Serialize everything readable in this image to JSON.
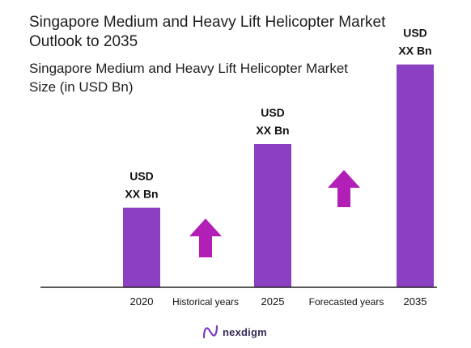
{
  "chart_data": {
    "type": "bar",
    "title": "Singapore Medium and Heavy Lift Helicopter Market Outlook to 2035",
    "subtitle": "Singapore Medium and Heavy Lift Helicopter Market Size (in USD Bn)",
    "categories": [
      "2020",
      "2025",
      "2035"
    ],
    "values": [
      1.0,
      1.8,
      2.8
    ],
    "value_labels": [
      [
        "USD",
        "XX Bn"
      ],
      [
        "USD",
        "XX Bn"
      ],
      [
        "USD",
        "XX Bn"
      ]
    ],
    "period_labels": [
      "Historical years",
      "Forecasted years"
    ],
    "ylim": [
      0,
      3.0
    ],
    "grid": false,
    "bar_color": "#8b3fc1",
    "arrow_color": "#b21fb6"
  },
  "brand": {
    "name": "nexdigm",
    "color": "#3a2a55",
    "accent": "#7a3fc1"
  }
}
